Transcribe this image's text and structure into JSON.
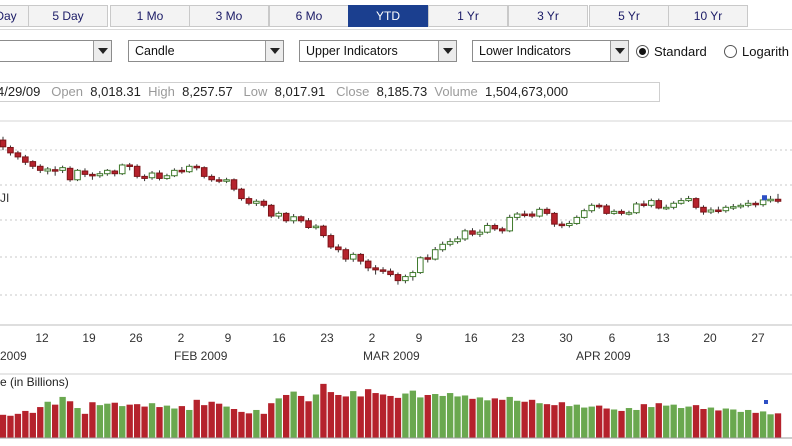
{
  "range_tabs": [
    {
      "label": "Day",
      "active": false
    },
    {
      "label": "5 Day",
      "active": false
    },
    {
      "label": "1 Mo",
      "active": false
    },
    {
      "label": "3 Mo",
      "active": false
    },
    {
      "label": "6 Mo",
      "active": false
    },
    {
      "label": "YTD",
      "active": true
    },
    {
      "label": "1 Yr",
      "active": false
    },
    {
      "label": "3 Yr",
      "active": false
    },
    {
      "label": "5 Yr",
      "active": false
    },
    {
      "label": "10 Yr",
      "active": false
    }
  ],
  "controls": {
    "period_select": "",
    "chart_type_select": "Candle",
    "upper_indicators_select": "Upper Indicators",
    "lower_indicators_select": "Lower Indicators",
    "scale_standard_label": "Standard",
    "scale_log_label": "Logarith",
    "selected_scale": "Standard"
  },
  "quote": {
    "date": "4/29/09",
    "open_label": "Open",
    "open": "8,018.31",
    "high_label": "High",
    "high": "8,257.57",
    "low_label": "Low",
    "low": "8,017.91",
    "close_label": "Close",
    "close": "8,185.73",
    "volume_label": "Volume",
    "volume": "1,504,673,000"
  },
  "chart_legend_symbol": "JI",
  "volume_title": "e (in Billions)",
  "colors": {
    "up": "#6aa84f",
    "up_border": "#3f7a2c",
    "down": "#b5222c",
    "down_border": "#7d1418",
    "accent_tab": "#1b3f8f",
    "grid": "#c8c8c8",
    "last_marker": "#2d4fc4"
  },
  "chart_data": {
    "type": "candlestick",
    "x_tick_labels": [
      "12",
      "19",
      "26",
      "2",
      "9",
      "16",
      "23",
      "2",
      "9",
      "16",
      "23",
      "30",
      "6",
      "13",
      "20",
      "27"
    ],
    "month_labels": [
      "2009",
      "FEB 2009",
      "MAR 2009",
      "APR 2009"
    ],
    "ylim": [
      6400,
      9300
    ],
    "candles": [
      {
        "o": 9150,
        "c": 9050,
        "h": 9200,
        "l": 9000
      },
      {
        "o": 9040,
        "c": 8960,
        "h": 9070,
        "l": 8920
      },
      {
        "o": 8960,
        "c": 8900,
        "h": 8990,
        "l": 8860
      },
      {
        "o": 8900,
        "c": 8820,
        "h": 8930,
        "l": 8780
      },
      {
        "o": 8830,
        "c": 8760,
        "h": 8850,
        "l": 8720
      },
      {
        "o": 8760,
        "c": 8700,
        "h": 8790,
        "l": 8660
      },
      {
        "o": 8690,
        "c": 8720,
        "h": 8750,
        "l": 8640
      },
      {
        "o": 8710,
        "c": 8690,
        "h": 8760,
        "l": 8620
      },
      {
        "o": 8700,
        "c": 8740,
        "h": 8770,
        "l": 8660
      },
      {
        "o": 8730,
        "c": 8560,
        "h": 8760,
        "l": 8530
      },
      {
        "o": 8560,
        "c": 8700,
        "h": 8720,
        "l": 8540
      },
      {
        "o": 8690,
        "c": 8640,
        "h": 8730,
        "l": 8600
      },
      {
        "o": 8640,
        "c": 8620,
        "h": 8670,
        "l": 8560
      },
      {
        "o": 8620,
        "c": 8650,
        "h": 8690,
        "l": 8590
      },
      {
        "o": 8650,
        "c": 8700,
        "h": 8720,
        "l": 8620
      },
      {
        "o": 8690,
        "c": 8650,
        "h": 8710,
        "l": 8610
      },
      {
        "o": 8650,
        "c": 8780,
        "h": 8800,
        "l": 8630
      },
      {
        "o": 8780,
        "c": 8760,
        "h": 8810,
        "l": 8700
      },
      {
        "o": 8760,
        "c": 8610,
        "h": 8790,
        "l": 8580
      },
      {
        "o": 8610,
        "c": 8580,
        "h": 8640,
        "l": 8540
      },
      {
        "o": 8590,
        "c": 8660,
        "h": 8690,
        "l": 8560
      },
      {
        "o": 8660,
        "c": 8580,
        "h": 8700,
        "l": 8550
      },
      {
        "o": 8580,
        "c": 8620,
        "h": 8650,
        "l": 8560
      },
      {
        "o": 8620,
        "c": 8700,
        "h": 8730,
        "l": 8600
      },
      {
        "o": 8700,
        "c": 8680,
        "h": 8750,
        "l": 8650
      },
      {
        "o": 8680,
        "c": 8760,
        "h": 8790,
        "l": 8660
      },
      {
        "o": 8760,
        "c": 8740,
        "h": 8790,
        "l": 8700
      },
      {
        "o": 8740,
        "c": 8610,
        "h": 8760,
        "l": 8580
      },
      {
        "o": 8610,
        "c": 8560,
        "h": 8640,
        "l": 8530
      },
      {
        "o": 8560,
        "c": 8540,
        "h": 8600,
        "l": 8510
      },
      {
        "o": 8540,
        "c": 8560,
        "h": 8590,
        "l": 8510
      },
      {
        "o": 8560,
        "c": 8420,
        "h": 8580,
        "l": 8390
      },
      {
        "o": 8420,
        "c": 8280,
        "h": 8440,
        "l": 8250
      },
      {
        "o": 8280,
        "c": 8210,
        "h": 8310,
        "l": 8180
      },
      {
        "o": 8210,
        "c": 8240,
        "h": 8270,
        "l": 8170
      },
      {
        "o": 8240,
        "c": 8180,
        "h": 8270,
        "l": 8150
      },
      {
        "o": 8180,
        "c": 8020,
        "h": 8200,
        "l": 7990
      },
      {
        "o": 8020,
        "c": 8060,
        "h": 8090,
        "l": 7980
      },
      {
        "o": 8060,
        "c": 7950,
        "h": 8080,
        "l": 7920
      },
      {
        "o": 7950,
        "c": 8010,
        "h": 8050,
        "l": 7910
      },
      {
        "o": 8010,
        "c": 7950,
        "h": 8030,
        "l": 7920
      },
      {
        "o": 7950,
        "c": 7850,
        "h": 7990,
        "l": 7830
      },
      {
        "o": 7850,
        "c": 7870,
        "h": 7900,
        "l": 7820
      },
      {
        "o": 7870,
        "c": 7730,
        "h": 7890,
        "l": 7700
      },
      {
        "o": 7730,
        "c": 7560,
        "h": 7760,
        "l": 7530
      },
      {
        "o": 7560,
        "c": 7520,
        "h": 7600,
        "l": 7480
      },
      {
        "o": 7520,
        "c": 7380,
        "h": 7550,
        "l": 7340
      },
      {
        "o": 7380,
        "c": 7450,
        "h": 7480,
        "l": 7340
      },
      {
        "o": 7450,
        "c": 7350,
        "h": 7470,
        "l": 7300
      },
      {
        "o": 7350,
        "c": 7250,
        "h": 7380,
        "l": 7200
      },
      {
        "o": 7250,
        "c": 7220,
        "h": 7290,
        "l": 7150
      },
      {
        "o": 7220,
        "c": 7200,
        "h": 7260,
        "l": 7160
      },
      {
        "o": 7200,
        "c": 7150,
        "h": 7240,
        "l": 7120
      },
      {
        "o": 7150,
        "c": 7060,
        "h": 7180,
        "l": 7000
      },
      {
        "o": 7060,
        "c": 7120,
        "h": 7150,
        "l": 7020
      },
      {
        "o": 7120,
        "c": 7180,
        "h": 7210,
        "l": 7060
      },
      {
        "o": 7180,
        "c": 7400,
        "h": 7420,
        "l": 7160
      },
      {
        "o": 7400,
        "c": 7380,
        "h": 7450,
        "l": 7330
      },
      {
        "o": 7380,
        "c": 7520,
        "h": 7560,
        "l": 7360
      },
      {
        "o": 7520,
        "c": 7600,
        "h": 7640,
        "l": 7490
      },
      {
        "o": 7600,
        "c": 7640,
        "h": 7690,
        "l": 7570
      },
      {
        "o": 7640,
        "c": 7680,
        "h": 7720,
        "l": 7610
      },
      {
        "o": 7680,
        "c": 7800,
        "h": 7830,
        "l": 7650
      },
      {
        "o": 7800,
        "c": 7750,
        "h": 7840,
        "l": 7720
      },
      {
        "o": 7750,
        "c": 7780,
        "h": 7820,
        "l": 7710
      },
      {
        "o": 7780,
        "c": 7880,
        "h": 7920,
        "l": 7760
      },
      {
        "o": 7880,
        "c": 7830,
        "h": 7910,
        "l": 7800
      },
      {
        "o": 7830,
        "c": 7800,
        "h": 7860,
        "l": 7760
      },
      {
        "o": 7800,
        "c": 8000,
        "h": 8040,
        "l": 7780
      },
      {
        "o": 8000,
        "c": 8050,
        "h": 8080,
        "l": 7960
      },
      {
        "o": 8050,
        "c": 8040,
        "h": 8100,
        "l": 8000
      },
      {
        "o": 8050,
        "c": 8020,
        "h": 8090,
        "l": 7990
      },
      {
        "o": 8020,
        "c": 8120,
        "h": 8150,
        "l": 8000
      },
      {
        "o": 8120,
        "c": 8060,
        "h": 8150,
        "l": 8030
      },
      {
        "o": 8060,
        "c": 7900,
        "h": 8080,
        "l": 7860
      },
      {
        "o": 7900,
        "c": 7880,
        "h": 7940,
        "l": 7840
      },
      {
        "o": 7880,
        "c": 7910,
        "h": 7950,
        "l": 7850
      },
      {
        "o": 7910,
        "c": 8000,
        "h": 8030,
        "l": 7890
      },
      {
        "o": 8000,
        "c": 8100,
        "h": 8130,
        "l": 7980
      },
      {
        "o": 8100,
        "c": 8180,
        "h": 8210,
        "l": 8070
      },
      {
        "o": 8180,
        "c": 8170,
        "h": 8210,
        "l": 8130
      },
      {
        "o": 8170,
        "c": 8060,
        "h": 8200,
        "l": 8040
      },
      {
        "o": 8060,
        "c": 8090,
        "h": 8120,
        "l": 8040
      },
      {
        "o": 8090,
        "c": 8060,
        "h": 8120,
        "l": 8030
      },
      {
        "o": 8060,
        "c": 8070,
        "h": 8100,
        "l": 8030
      },
      {
        "o": 8070,
        "c": 8200,
        "h": 8230,
        "l": 8050
      },
      {
        "o": 8200,
        "c": 8180,
        "h": 8250,
        "l": 8150
      },
      {
        "o": 8180,
        "c": 8250,
        "h": 8280,
        "l": 8150
      },
      {
        "o": 8250,
        "c": 8140,
        "h": 8280,
        "l": 8120
      },
      {
        "o": 8140,
        "c": 8150,
        "h": 8190,
        "l": 8110
      },
      {
        "o": 8150,
        "c": 8210,
        "h": 8240,
        "l": 8120
      },
      {
        "o": 8210,
        "c": 8250,
        "h": 8290,
        "l": 8190
      },
      {
        "o": 8250,
        "c": 8280,
        "h": 8320,
        "l": 8230
      },
      {
        "o": 8280,
        "c": 8150,
        "h": 8300,
        "l": 8120
      },
      {
        "o": 8150,
        "c": 8080,
        "h": 8180,
        "l": 8040
      },
      {
        "o": 8080,
        "c": 8110,
        "h": 8150,
        "l": 8050
      },
      {
        "o": 8110,
        "c": 8100,
        "h": 8160,
        "l": 8060
      },
      {
        "o": 8100,
        "c": 8150,
        "h": 8180,
        "l": 8070
      },
      {
        "o": 8150,
        "c": 8160,
        "h": 8200,
        "l": 8110
      },
      {
        "o": 8160,
        "c": 8180,
        "h": 8210,
        "l": 8130
      },
      {
        "o": 8180,
        "c": 8210,
        "h": 8260,
        "l": 8150
      },
      {
        "o": 8210,
        "c": 8190,
        "h": 8240,
        "l": 8150
      },
      {
        "o": 8190,
        "c": 8260,
        "h": 8300,
        "l": 8160
      },
      {
        "o": 8260,
        "c": 8270,
        "h": 8320,
        "l": 8220
      },
      {
        "o": 8270,
        "c": 8240,
        "h": 8350,
        "l": 8210
      }
    ],
    "volumes": [
      4.8,
      4.6,
      5.0,
      5.6,
      5.2,
      6.4,
      7.5,
      6.9,
      8.5,
      7.6,
      6.2,
      5.0,
      7.4,
      6.8,
      7.1,
      7.3,
      6.6,
      6.9,
      7.0,
      6.5,
      7.2,
      6.4,
      6.7,
      6.1,
      6.6,
      5.8,
      7.9,
      6.8,
      7.5,
      7.1,
      6.5,
      6.0,
      5.4,
      5.1,
      5.8,
      5.0,
      7.2,
      8.2,
      8.9,
      9.6,
      8.7,
      7.6,
      9.0,
      11.2,
      9.5,
      8.9,
      8.6,
      9.7,
      8.6,
      10.1,
      9.3,
      9.0,
      8.7,
      8.3,
      9.2,
      9.8,
      8.4,
      8.9,
      9.1,
      8.7,
      9.3,
      8.6,
      8.8,
      8.1,
      8.4,
      7.8,
      8.2,
      7.9,
      8.5,
      7.7,
      7.5,
      7.9,
      7.2,
      7.0,
      6.8,
      7.4,
      6.6,
      6.9,
      6.3,
      6.5,
      6.7,
      6.1,
      5.9,
      5.6,
      6.2,
      5.8,
      7.0,
      6.4,
      7.2,
      6.7,
      6.9,
      6.2,
      6.5,
      6.8,
      6.0,
      6.3,
      5.7,
      6.1,
      5.9,
      5.4,
      5.8,
      5.2,
      5.5,
      4.9,
      5.1
    ]
  }
}
